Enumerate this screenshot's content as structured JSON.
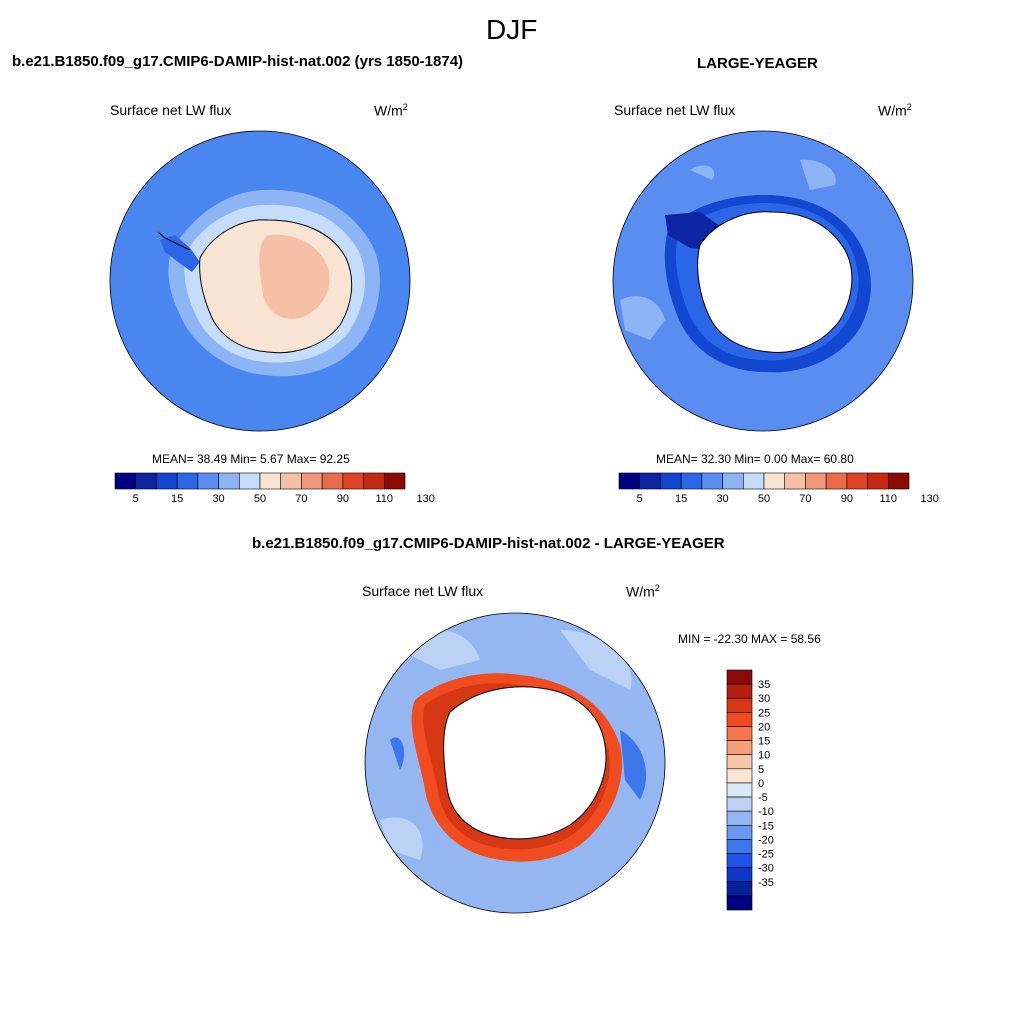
{
  "page": {
    "title": "DJF",
    "colors": {
      "ocean": "#4a86f0",
      "land_outline": "#000000",
      "blank": "#ffffff"
    }
  },
  "panels": [
    {
      "id": "case",
      "title": "b.e21.B1850.f09_g17.CMIP6-DAMIP-hist-nat.002 (yrs 1850-1874)",
      "left_label": "Surface net LW flux",
      "unit_base": "W/m",
      "unit_exp": "2",
      "stats": "MEAN=  38.49  Min=   5.67  Max=  92.25"
    },
    {
      "id": "obs",
      "title": "LARGE-YEAGER",
      "left_label": "Surface net LW flux",
      "unit_base": "W/m",
      "unit_exp": "2",
      "stats": "MEAN=  32.30  Min=   0.00  Max=  60.80"
    },
    {
      "id": "diff",
      "title": "b.e21.B1850.f09_g17.CMIP6-DAMIP-hist-nat.002 - LARGE-YEAGER",
      "left_label": "Surface net LW flux",
      "unit_base": "W/m",
      "unit_exp": "2",
      "stats": "MIN = -22.30 MAX =  58.56"
    }
  ],
  "chart_data": [
    {
      "type": "heatmap",
      "title": "b.e21.B1850.f09_g17.CMIP6-DAMIP-hist-nat.002 (yrs 1850-1874)",
      "variable": "Surface net LW flux",
      "units": "W/m2",
      "projection": "south polar stereographic",
      "mean": 38.49,
      "min": 5.67,
      "max": 92.25,
      "colorbar": {
        "orientation": "horizontal",
        "colors": [
          "#000080",
          "#0d24a3",
          "#1447d1",
          "#2c66e8",
          "#5a8df0",
          "#8db4f5",
          "#c6dcfb",
          "#f9e3d3",
          "#f5c0a6",
          "#f09878",
          "#ea6c4c",
          "#e04326",
          "#c42a12",
          "#8b0a05"
        ],
        "tick_labels": [
          "5",
          "15",
          "30",
          "50",
          "70",
          "90",
          "110",
          "130"
        ]
      }
    },
    {
      "type": "heatmap",
      "title": "LARGE-YEAGER",
      "variable": "Surface net LW flux",
      "units": "W/m2",
      "projection": "south polar stereographic",
      "mean": 32.3,
      "min": 0.0,
      "max": 60.8,
      "colorbar": {
        "orientation": "horizontal",
        "colors": [
          "#000080",
          "#0d24a3",
          "#1447d1",
          "#2c66e8",
          "#5a8df0",
          "#8db4f5",
          "#c6dcfb",
          "#f9e3d3",
          "#f5c0a6",
          "#f09878",
          "#ea6c4c",
          "#e04326",
          "#c42a12",
          "#8b0a05"
        ],
        "tick_labels": [
          "5",
          "15",
          "30",
          "50",
          "70",
          "90",
          "110",
          "130"
        ]
      }
    },
    {
      "type": "heatmap",
      "title": "b.e21.B1850.f09_g17.CMIP6-DAMIP-hist-nat.002 - LARGE-YEAGER",
      "variable": "Surface net LW flux",
      "units": "W/m2",
      "projection": "south polar stereographic",
      "min": -22.3,
      "max": 58.56,
      "colorbar": {
        "orientation": "vertical",
        "colors": [
          "#8b0a05",
          "#b5200e",
          "#d63714",
          "#f04c20",
          "#f4774a",
          "#f5a079",
          "#f7c6aa",
          "#fbe4d3",
          "#dde8f7",
          "#bcd2f5",
          "#94b7f1",
          "#6a98ee",
          "#3e76eb",
          "#1f52e8",
          "#0f36c8",
          "#081f9c",
          "#000080"
        ],
        "tick_labels": [
          "35",
          "30",
          "25",
          "20",
          "15",
          "10",
          "5",
          "0",
          "-5",
          "-10",
          "-15",
          "-20",
          "-25",
          "-30",
          "-35"
        ]
      }
    }
  ]
}
